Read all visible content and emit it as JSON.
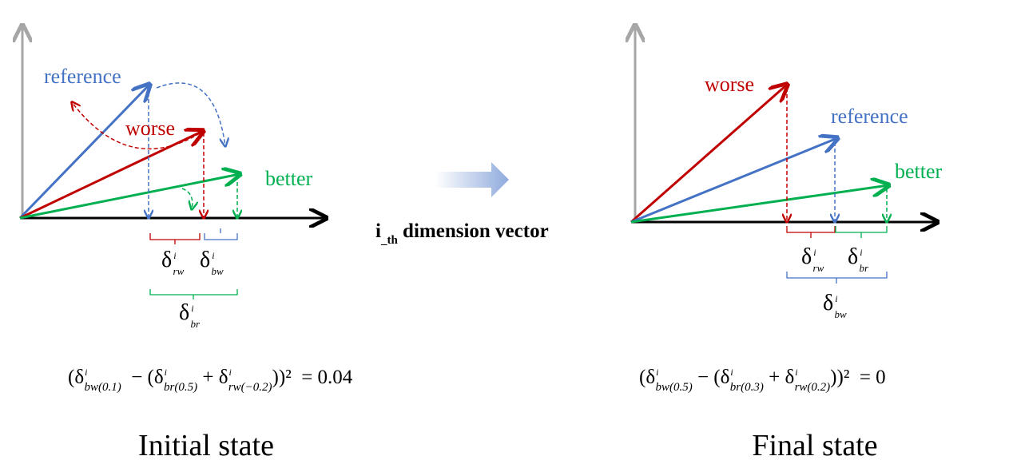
{
  "center_label": {
    "main": "i",
    "sub": "_th",
    "rest": " dimension vector"
  },
  "panels": [
    {
      "caption": "Initial state",
      "vectors": [
        "reference",
        "worse",
        "better"
      ],
      "deltas": [
        {
          "symbol": "δ",
          "sup": "i",
          "sub": "rw"
        },
        {
          "symbol": "δ",
          "sup": "i",
          "sub": "bw"
        },
        {
          "symbol": "δ",
          "sup": "i",
          "sub": "br"
        }
      ],
      "formula": [
        "(δ",
        "i",
        "bw(0.1)",
        "  − (δ",
        "i",
        "br(0.5)",
        " + δ",
        "i",
        "rw(−0.2)",
        "))²",
        "  = 0.04"
      ]
    },
    {
      "caption": "Final state",
      "vectors": [
        "worse",
        "reference",
        "better"
      ],
      "deltas": [
        {
          "symbol": "δ",
          "sup": "i",
          "sub": "rw"
        },
        {
          "symbol": "δ",
          "sup": "i",
          "sub": "br"
        },
        {
          "symbol": "δ",
          "sup": "i",
          "sub": "bw"
        }
      ],
      "formula": [
        "(δ",
        "i",
        "bw(0.5)",
        " − (δ",
        "i",
        "br(0.3)",
        " + δ",
        "i",
        "rw(0.2)",
        "))²",
        "  = 0"
      ]
    }
  ]
}
